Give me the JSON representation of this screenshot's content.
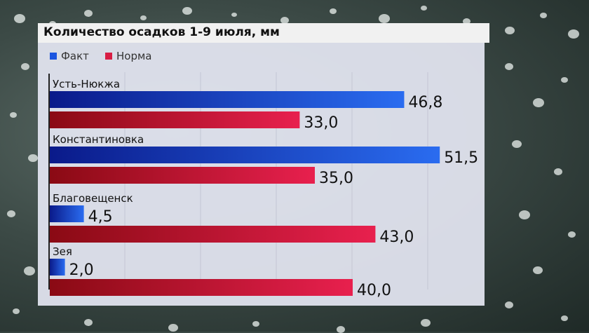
{
  "chart_data": {
    "type": "bar",
    "orientation": "horizontal",
    "title": "Количество осадков 1-9 июля, мм",
    "categories": [
      "Усть-Нюкжа",
      "Константиновка",
      "Благовещенск",
      "Зея"
    ],
    "series": [
      {
        "name": "Факт",
        "values": [
          46.8,
          51.5,
          4.5,
          2.0
        ],
        "labels": [
          "46,8",
          "51,5",
          "4,5",
          "2,0"
        ]
      },
      {
        "name": "Норма",
        "values": [
          33.0,
          35.0,
          43.0,
          40.0
        ],
        "labels": [
          "33,0",
          "35,0",
          "43,0",
          "40,0"
        ]
      }
    ],
    "grid": true,
    "legend_position": "top-left"
  },
  "colors": {
    "fact": "#1a55e0",
    "norm": "#d81e44"
  }
}
